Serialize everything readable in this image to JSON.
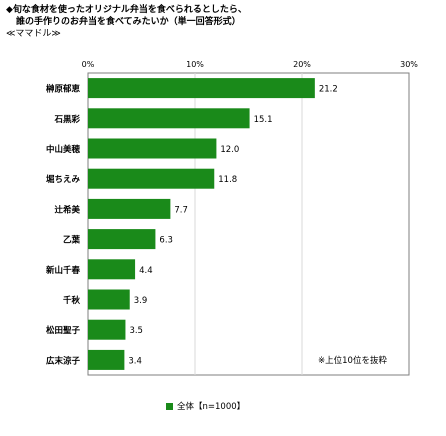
{
  "title": {
    "line1": "◆旬な食材を使ったオリジナル弁当を食べられるとしたら、",
    "line2": "誰の手作りのお弁当を食べてみたいか（単一回答形式）",
    "line3": "≪ママドル≫"
  },
  "note": "※上位10位を抜粋",
  "legend": {
    "label": "全体【n=1000】"
  },
  "colors": {
    "bar": "#1a8a1a",
    "frame": "#7f7f7f",
    "grid": "#d9d9d9"
  },
  "chart_data": {
    "type": "bar",
    "orientation": "horizontal",
    "categories": [
      "榊原郁恵",
      "石黒彩",
      "中山美穂",
      "堀ちえみ",
      "辻希美",
      "乙葉",
      "新山千春",
      "千秋",
      "松田聖子",
      "広末涼子"
    ],
    "values": [
      21.2,
      15.1,
      12.0,
      11.8,
      7.7,
      6.3,
      4.4,
      3.9,
      3.5,
      3.4
    ],
    "value_labels": [
      "21.2",
      "15.1",
      "12.0",
      "11.8",
      "7.7",
      "6.3",
      "4.4",
      "3.9",
      "3.5",
      "3.4"
    ],
    "xlim": [
      0,
      30
    ],
    "ticks": [
      "0%",
      "10%",
      "20%",
      "30%"
    ],
    "series": [
      {
        "name": "全体【n=1000】",
        "values": [
          21.2,
          15.1,
          12.0,
          11.8,
          7.7,
          6.3,
          4.4,
          3.9,
          3.5,
          3.4
        ]
      }
    ],
    "legend_position": "bottom",
    "grid": true
  }
}
